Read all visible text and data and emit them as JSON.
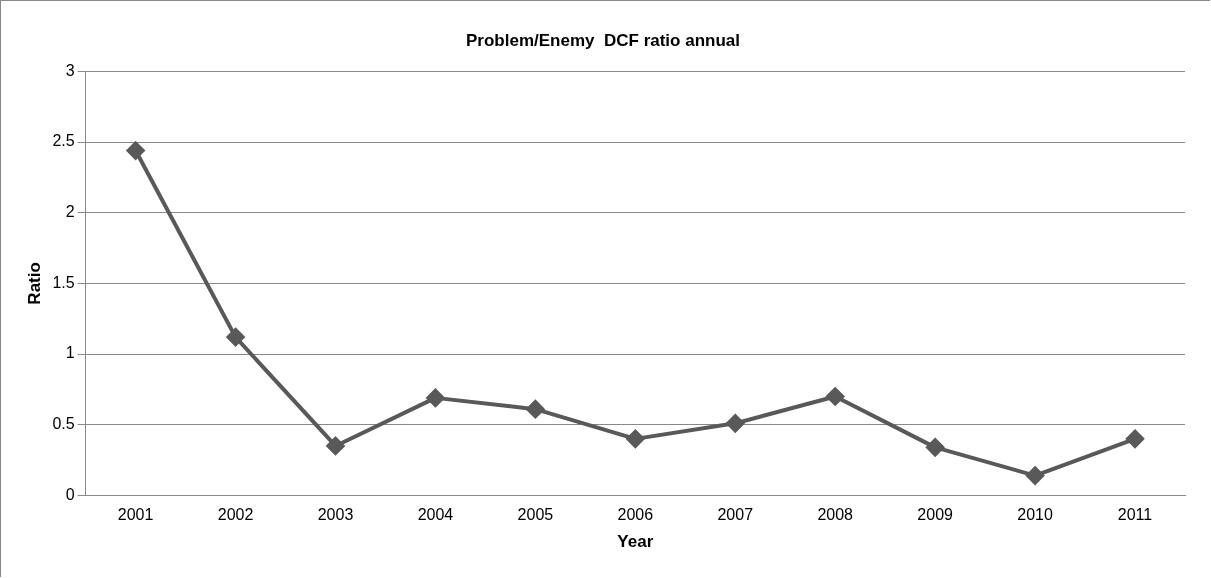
{
  "chart_data": {
    "type": "line",
    "title": "Problem/Enemy  DCF ratio annual",
    "xlabel": "Year",
    "ylabel": "Ratio",
    "categories": [
      "2001",
      "2002",
      "2003",
      "2004",
      "2005",
      "2006",
      "2007",
      "2008",
      "2009",
      "2010",
      "2011"
    ],
    "series": [
      {
        "color": "#595959",
        "values": [
          2.44,
          1.12,
          0.35,
          0.69,
          0.61,
          0.4,
          0.51,
          0.7,
          0.34,
          0.14,
          0.4
        ]
      }
    ],
    "ylim": [
      0,
      3
    ],
    "yticks": [
      0,
      0.5,
      1,
      1.5,
      2,
      2.5,
      3
    ],
    "grid": "y",
    "legend": false,
    "marker": "diamond",
    "line_style": "solid"
  }
}
